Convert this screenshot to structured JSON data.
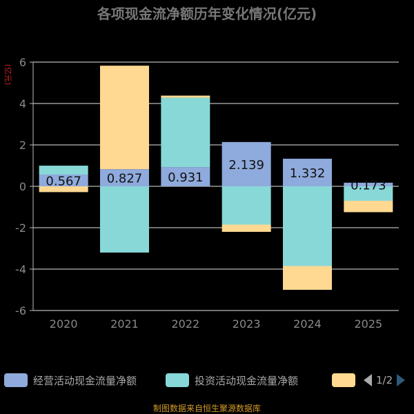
{
  "chart_data": {
    "type": "bar",
    "stacked": true,
    "title": "各项现金流净额历年变化情况(亿元)",
    "ylabel": "(亿元)",
    "ylim": [
      -6,
      6
    ],
    "yticks": [
      6,
      4,
      2,
      0,
      -2,
      -4,
      -6
    ],
    "grid": true,
    "categories": [
      "2020",
      "2021",
      "2022",
      "2023",
      "2024",
      "2025"
    ],
    "series": [
      {
        "name": "经营活动现金流量净额",
        "color": "#8faadc",
        "values": [
          0.567,
          0.827,
          0.931,
          2.139,
          1.332,
          0.173
        ],
        "labels": [
          "0.567",
          "0.827",
          "0.931",
          "2.139",
          "1.332",
          "0.173"
        ]
      },
      {
        "name": "投资活动现金流量净额",
        "color": "#88d8d8",
        "values": [
          0.43,
          -3.2,
          3.35,
          -1.85,
          -3.85,
          -0.7
        ]
      },
      {
        "name": "",
        "color": "#ffd992",
        "values": [
          -0.28,
          5.0,
          0.1,
          -0.35,
          -1.15,
          -0.55
        ]
      }
    ]
  },
  "legend": {
    "items": [
      {
        "label": "经营活动现金流量净额",
        "color": "#8faadc"
      },
      {
        "label": "投资活动现金流量净额",
        "color": "#88d8d8"
      },
      {
        "label": "",
        "color": "#ffd992"
      }
    ],
    "page": "1/2"
  },
  "source": "制图数据来自恒生聚源数据库"
}
